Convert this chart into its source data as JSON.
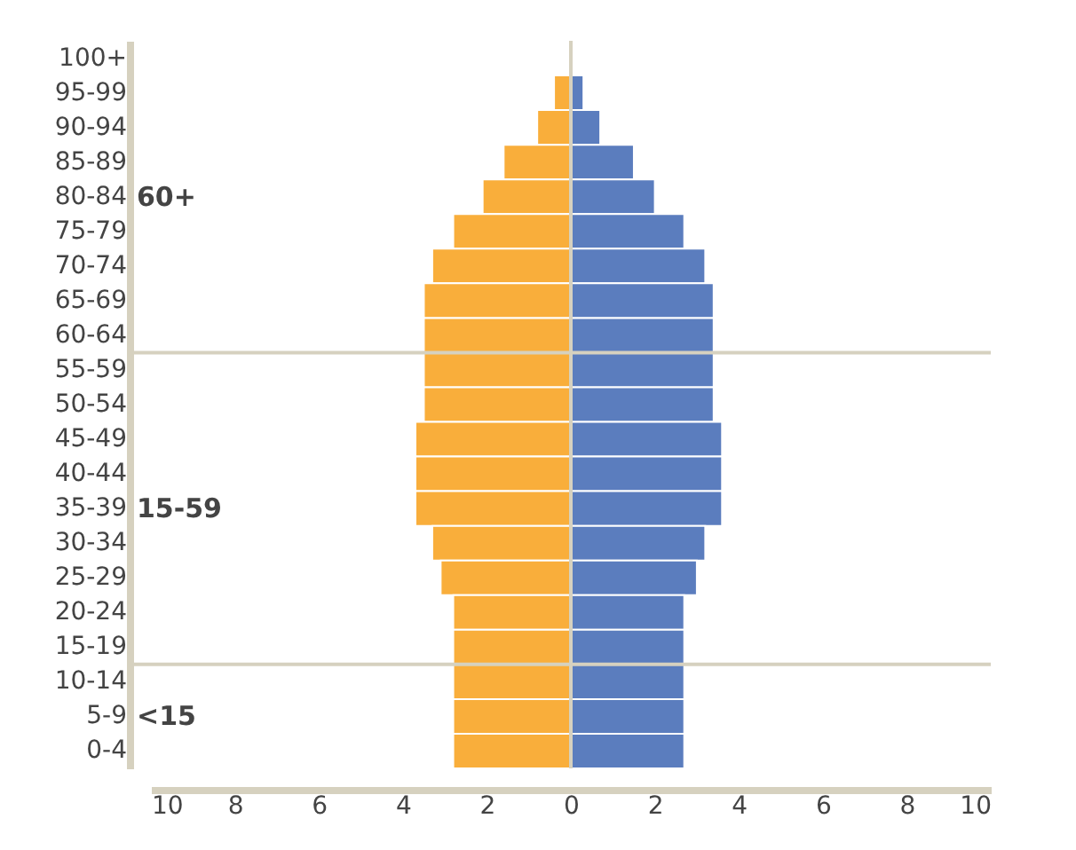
{
  "chart_data": {
    "type": "bar",
    "orientation": "horizontal",
    "categories": [
      "100+",
      "95-99",
      "90-94",
      "85-89",
      "80-84",
      "75-79",
      "70-74",
      "65-69",
      "60-64",
      "55-59",
      "50-54",
      "45-49",
      "40-44",
      "35-39",
      "30-34",
      "25-29",
      "20-24",
      "15-19",
      "10-14",
      "5-9",
      "0-4"
    ],
    "series": [
      {
        "color": "#f9ae3b",
        "values": [
          null,
          -0.4,
          -0.8,
          -1.6,
          -2.1,
          -2.8,
          -3.3,
          -3.5,
          -3.5,
          -3.5,
          -3.5,
          -3.7,
          -3.7,
          -3.7,
          -3.3,
          -3.1,
          -2.8,
          -2.8,
          -2.8,
          -2.8,
          -2.8
        ]
      },
      {
        "color": "#5b7dbe",
        "values": [
          null,
          0.3,
          0.7,
          1.5,
          2.0,
          2.7,
          3.2,
          3.4,
          3.4,
          3.4,
          3.4,
          3.6,
          3.6,
          3.6,
          3.2,
          3.0,
          2.7,
          2.7,
          2.7,
          2.7,
          2.7
        ]
      }
    ],
    "xlim": [
      -10,
      10
    ],
    "xticks": [
      {
        "value": -10,
        "label": "10"
      },
      {
        "value": -8,
        "label": "8"
      },
      {
        "value": -6,
        "label": "6"
      },
      {
        "value": -4,
        "label": "4"
      },
      {
        "value": -2,
        "label": "2"
      },
      0,
      2,
      4,
      6,
      8,
      10
    ],
    "ref_lines": [
      {
        "axis": "y",
        "value": "60-64",
        "color": "#d6d1bf"
      },
      {
        "axis": "y",
        "value": "15-19",
        "color": "#d6d1bf"
      },
      {
        "axis": "x",
        "value": 0,
        "color": "#d6d1bf"
      }
    ],
    "annotations": [
      "60+",
      "15-59",
      "<15"
    ],
    "stacked": true,
    "grid": false
  }
}
